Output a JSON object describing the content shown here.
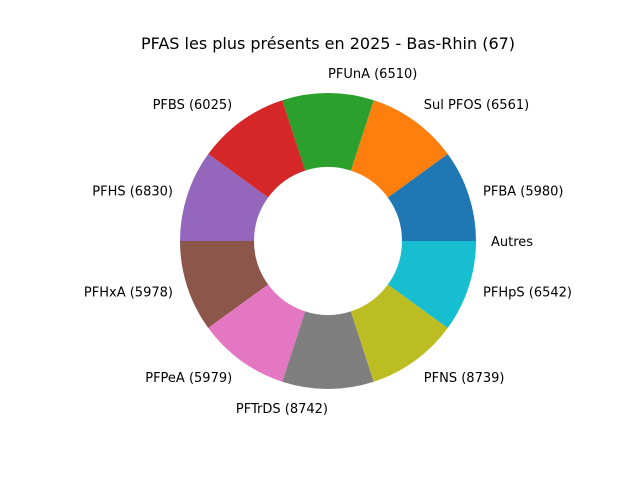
{
  "chart_data": {
    "type": "pie",
    "variant": "donut",
    "title": "PFAS les plus présents en 2025 - Bas-Rhin (67)",
    "start_angle_deg": 0,
    "direction": "counterclockwise",
    "slices": [
      {
        "label": "PFBA (5980)",
        "value": 1,
        "color": "#1f77b4"
      },
      {
        "label": "Sul PFOS (6561)",
        "value": 1,
        "color": "#ff7f0e"
      },
      {
        "label": "PFUnA (6510)",
        "value": 1,
        "color": "#2ca02c"
      },
      {
        "label": "PFBS (6025)",
        "value": 1,
        "color": "#d62728"
      },
      {
        "label": "PFHS (6830)",
        "value": 1,
        "color": "#9467bd"
      },
      {
        "label": "PFHxA (5978)",
        "value": 1,
        "color": "#8c564b"
      },
      {
        "label": "PFPeA (5979)",
        "value": 1,
        "color": "#e377c2"
      },
      {
        "label": "PFTrDS (8742)",
        "value": 1,
        "color": "#7f7f7f"
      },
      {
        "label": "PFNS (8739)",
        "value": 1,
        "color": "#bcbd22"
      },
      {
        "label": "PFHpS (6542)",
        "value": 1,
        "color": "#17becf"
      },
      {
        "label": "Autres",
        "value": 0,
        "color": "#1f77b4"
      }
    ]
  }
}
